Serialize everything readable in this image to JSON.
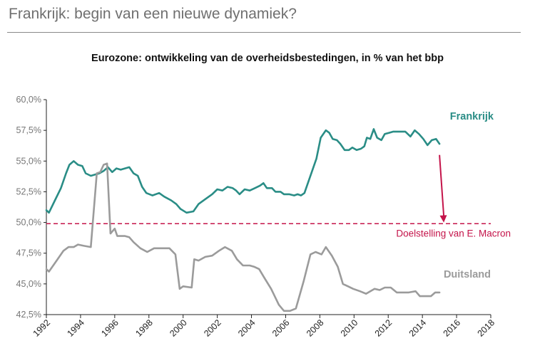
{
  "header": {
    "title": "Frankrijk: begin van een nieuwe dynamiek?"
  },
  "chart_data": {
    "type": "line",
    "title": "Eurozone: ontwikkeling van de overheidsbestedingen, in % van het bbp",
    "xlabel": "",
    "ylabel": "",
    "xlim": [
      1992,
      2018
    ],
    "ylim": [
      42.5,
      60.0
    ],
    "x_ticks": [
      "1992",
      "1994",
      "1996",
      "1998",
      "2000",
      "2002",
      "2004",
      "2006",
      "2008",
      "2010",
      "2012",
      "2014",
      "2016",
      "2018"
    ],
    "y_ticks": [
      "60,0%",
      "57,5%",
      "55,0%",
      "52,5%",
      "50,0%",
      "47,5%",
      "45,0%",
      "42,5%"
    ],
    "grid": false,
    "series": [
      {
        "name": "Frankrijk",
        "color": "#2a8d86",
        "points": [
          [
            1992.0,
            51.0
          ],
          [
            1992.15,
            50.8
          ],
          [
            1992.5,
            51.8
          ],
          [
            1992.85,
            52.8
          ],
          [
            1993.15,
            54.0
          ],
          [
            1993.35,
            54.7
          ],
          [
            1993.6,
            55.0
          ],
          [
            1993.85,
            54.7
          ],
          [
            1994.1,
            54.6
          ],
          [
            1994.3,
            54.0
          ],
          [
            1994.6,
            53.8
          ],
          [
            1994.85,
            53.9
          ],
          [
            1995.1,
            54.0
          ],
          [
            1995.35,
            54.2
          ],
          [
            1995.6,
            54.5
          ],
          [
            1995.85,
            54.1
          ],
          [
            1996.1,
            54.4
          ],
          [
            1996.35,
            54.3
          ],
          [
            1996.6,
            54.4
          ],
          [
            1996.85,
            54.5
          ],
          [
            1997.1,
            54.0
          ],
          [
            1997.35,
            53.8
          ],
          [
            1997.6,
            52.9
          ],
          [
            1997.85,
            52.4
          ],
          [
            1998.2,
            52.2
          ],
          [
            1998.6,
            52.4
          ],
          [
            1998.9,
            52.1
          ],
          [
            1999.3,
            51.8
          ],
          [
            1999.6,
            51.5
          ],
          [
            1999.85,
            51.1
          ],
          [
            2000.2,
            50.8
          ],
          [
            2000.6,
            50.9
          ],
          [
            2000.9,
            51.5
          ],
          [
            2001.3,
            51.9
          ],
          [
            2001.7,
            52.3
          ],
          [
            2002.0,
            52.7
          ],
          [
            2002.3,
            52.6
          ],
          [
            2002.6,
            52.9
          ],
          [
            2002.9,
            52.8
          ],
          [
            2003.1,
            52.6
          ],
          [
            2003.3,
            52.3
          ],
          [
            2003.6,
            52.7
          ],
          [
            2003.9,
            52.6
          ],
          [
            2004.2,
            52.8
          ],
          [
            2004.5,
            53.0
          ],
          [
            2004.7,
            53.2
          ],
          [
            2004.9,
            52.8
          ],
          [
            2005.2,
            52.8
          ],
          [
            2005.4,
            52.5
          ],
          [
            2005.7,
            52.5
          ],
          [
            2005.9,
            52.3
          ],
          [
            2006.2,
            52.3
          ],
          [
            2006.5,
            52.2
          ],
          [
            2006.7,
            52.3
          ],
          [
            2006.9,
            52.2
          ],
          [
            2007.1,
            52.4
          ],
          [
            2007.4,
            53.6
          ],
          [
            2007.8,
            55.2
          ],
          [
            2008.05,
            56.9
          ],
          [
            2008.35,
            57.5
          ],
          [
            2008.55,
            57.3
          ],
          [
            2008.75,
            56.8
          ],
          [
            2009.0,
            56.7
          ],
          [
            2009.2,
            56.4
          ],
          [
            2009.45,
            55.9
          ],
          [
            2009.7,
            55.9
          ],
          [
            2009.9,
            56.1
          ],
          [
            2010.15,
            55.9
          ],
          [
            2010.4,
            56.0
          ],
          [
            2010.6,
            56.2
          ],
          [
            2010.75,
            56.9
          ],
          [
            2010.95,
            56.8
          ],
          [
            2011.15,
            57.6
          ],
          [
            2011.35,
            56.9
          ],
          [
            2011.6,
            56.7
          ],
          [
            2011.8,
            57.2
          ],
          [
            2012.05,
            57.3
          ],
          [
            2012.3,
            57.4
          ],
          [
            2012.6,
            57.4
          ],
          [
            2013.0,
            57.4
          ],
          [
            2013.3,
            57.0
          ],
          [
            2013.55,
            57.5
          ],
          [
            2013.8,
            57.2
          ],
          [
            2014.05,
            56.8
          ],
          [
            2014.3,
            56.3
          ],
          [
            2014.55,
            56.7
          ],
          [
            2014.8,
            56.8
          ],
          [
            2015.0,
            56.4
          ]
        ]
      },
      {
        "name": "Duitsland",
        "color": "#9b9b9b",
        "points": [
          [
            1992.0,
            46.2
          ],
          [
            1992.15,
            46.0
          ],
          [
            1992.6,
            46.9
          ],
          [
            1993.0,
            47.7
          ],
          [
            1993.3,
            48.0
          ],
          [
            1993.6,
            48.0
          ],
          [
            1993.85,
            48.2
          ],
          [
            1994.2,
            48.1
          ],
          [
            1994.6,
            48.0
          ],
          [
            1994.95,
            54.0
          ],
          [
            1995.15,
            54.1
          ],
          [
            1995.35,
            54.7
          ],
          [
            1995.55,
            54.8
          ],
          [
            1995.75,
            49.1
          ],
          [
            1996.0,
            49.5
          ],
          [
            1996.15,
            48.9
          ],
          [
            1996.6,
            48.9
          ],
          [
            1996.85,
            48.8
          ],
          [
            1997.1,
            48.4
          ],
          [
            1997.5,
            47.9
          ],
          [
            1997.9,
            47.6
          ],
          [
            1998.3,
            47.9
          ],
          [
            1998.9,
            47.9
          ],
          [
            1999.2,
            47.9
          ],
          [
            1999.55,
            47.4
          ],
          [
            1999.8,
            44.6
          ],
          [
            2000.0,
            44.8
          ],
          [
            2000.5,
            44.7
          ],
          [
            2000.65,
            47.0
          ],
          [
            2000.9,
            46.9
          ],
          [
            2001.3,
            47.2
          ],
          [
            2001.7,
            47.3
          ],
          [
            2002.1,
            47.7
          ],
          [
            2002.45,
            48.0
          ],
          [
            2002.85,
            47.7
          ],
          [
            2003.15,
            47.0
          ],
          [
            2003.5,
            46.5
          ],
          [
            2003.9,
            46.5
          ],
          [
            2004.15,
            46.4
          ],
          [
            2004.45,
            46.2
          ],
          [
            2004.75,
            45.5
          ],
          [
            2005.15,
            44.6
          ],
          [
            2005.6,
            43.3
          ],
          [
            2005.9,
            42.8
          ],
          [
            2006.25,
            42.8
          ],
          [
            2006.6,
            43.0
          ],
          [
            2007.05,
            45.2
          ],
          [
            2007.45,
            47.4
          ],
          [
            2007.75,
            47.6
          ],
          [
            2008.1,
            47.4
          ],
          [
            2008.35,
            48.0
          ],
          [
            2008.7,
            47.3
          ],
          [
            2009.05,
            46.4
          ],
          [
            2009.35,
            45.0
          ],
          [
            2009.65,
            44.8
          ],
          [
            2009.95,
            44.6
          ],
          [
            2010.35,
            44.4
          ],
          [
            2010.7,
            44.2
          ],
          [
            2010.95,
            44.4
          ],
          [
            2011.2,
            44.6
          ],
          [
            2011.5,
            44.5
          ],
          [
            2011.8,
            44.7
          ],
          [
            2012.15,
            44.7
          ],
          [
            2012.5,
            44.3
          ],
          [
            2012.85,
            44.3
          ],
          [
            2013.2,
            44.3
          ],
          [
            2013.6,
            44.4
          ],
          [
            2013.85,
            44.0
          ],
          [
            2014.2,
            44.0
          ],
          [
            2014.5,
            44.0
          ],
          [
            2014.75,
            44.3
          ],
          [
            2015.0,
            44.3
          ]
        ]
      }
    ],
    "annotations": {
      "series_label_frankrijk": "Frankrijk",
      "series_label_duitsland": "Duitsland",
      "target_level": 49.9,
      "target_label": "Doelstelling van E. Macron",
      "target_color": "#c4144a",
      "arrow_from": [
        2015.0,
        55.5
      ],
      "arrow_to": [
        2015.25,
        50.0
      ]
    }
  }
}
